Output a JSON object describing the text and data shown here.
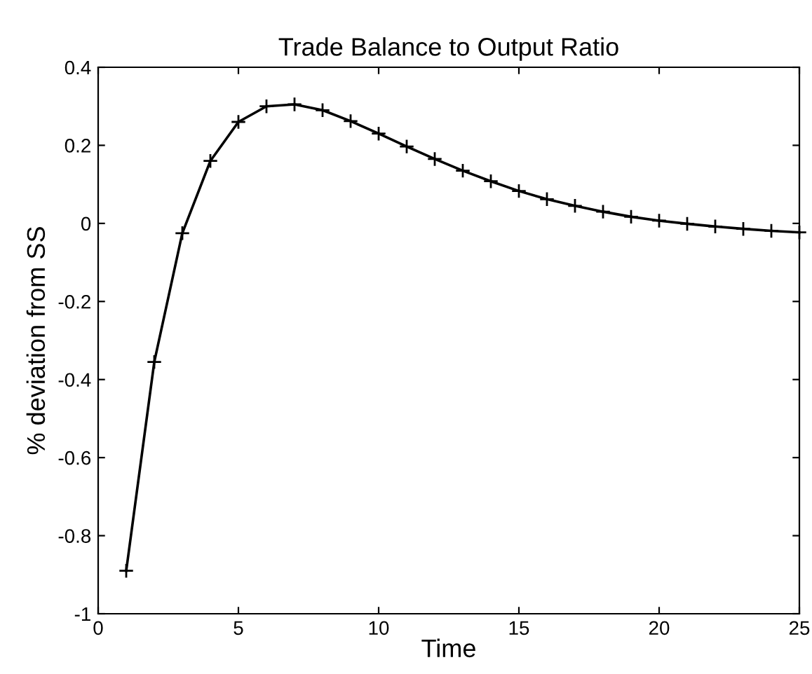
{
  "chart_data": {
    "type": "line",
    "title": "Trade Balance to Output Ratio",
    "xlabel": "Time",
    "ylabel": "% deviation from SS",
    "x": [
      1,
      2,
      3,
      4,
      5,
      6,
      7,
      8,
      9,
      10,
      11,
      12,
      13,
      14,
      15,
      16,
      17,
      18,
      19,
      20,
      21,
      22,
      23,
      24,
      25
    ],
    "series": [
      {
        "color": "#000000",
        "values": [
          -0.89,
          -0.355,
          -0.025,
          0.16,
          0.26,
          0.3,
          0.305,
          0.29,
          0.262,
          0.23,
          0.197,
          0.165,
          0.135,
          0.108,
          0.083,
          0.062,
          0.045,
          0.03,
          0.017,
          0.007,
          -0.001,
          -0.008,
          -0.014,
          -0.019,
          -0.023
        ]
      }
    ],
    "xlim": [
      0,
      25
    ],
    "xticks": [
      0,
      5,
      10,
      15,
      20,
      25
    ],
    "ylim": [
      -1,
      0.4
    ],
    "yticks": [
      -1,
      -0.8,
      -0.6,
      -0.4,
      -0.2,
      0,
      0.2,
      0.4
    ],
    "marker": "cross",
    "line_style": "solid",
    "grid": false,
    "legend": false
  }
}
